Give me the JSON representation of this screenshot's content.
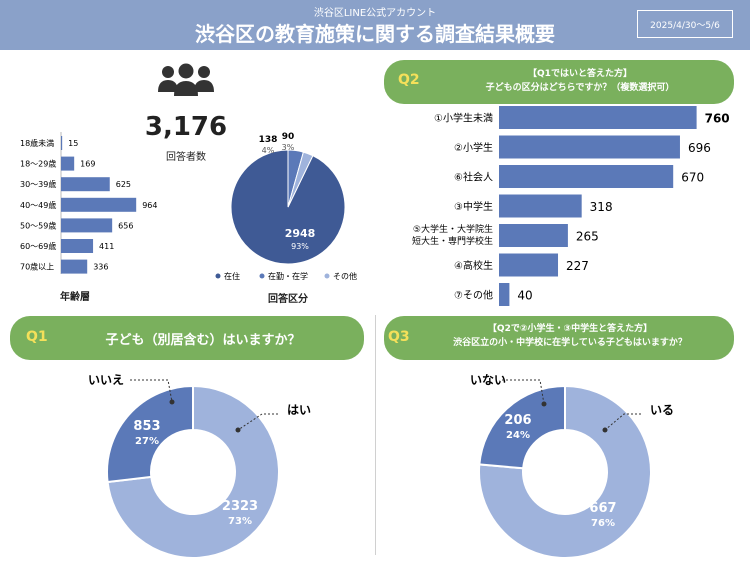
{
  "header": {
    "subtitle": "渋谷区LINE公式アカウント",
    "title": "渋谷区の教育施策に関する調査結果概要",
    "date_range": "2025/4/30～5/6"
  },
  "respondents": {
    "count": "3,176",
    "label": "回答者数"
  },
  "colors": {
    "dark": "#3f5a95",
    "mid": "#5b79b8",
    "light": "#9fb3dc",
    "green": "#7ab05d",
    "yellow": "#f4e05a"
  },
  "age_chart_label": "年齢層",
  "type_chart_label": "回答区分",
  "q1": {
    "label": "Q1",
    "text": "子ども（別居含む）はいますか？"
  },
  "q2": {
    "label": "Q2",
    "line1": "【Q1ではいと答えた方】",
    "line2": "子どもの区分はどちらですか？（複数選択可）"
  },
  "q3": {
    "label": "Q3",
    "line1": "【Q2で②小学生・③中学生と答えた方】",
    "line2": "渋谷区立の小・中学校に在学している子どもはいますか？"
  },
  "chart_data": [
    {
      "id": "age",
      "type": "bar",
      "orientation": "horizontal",
      "title": "年齢層",
      "categories": [
        "18歳未満",
        "18～29歳",
        "30～39歳",
        "40～49歳",
        "50～59歳",
        "60～69歳",
        "70歳以上"
      ],
      "values": [
        15,
        169,
        625,
        964,
        656,
        411,
        336
      ],
      "xlim": [
        0,
        1000
      ]
    },
    {
      "id": "type",
      "type": "pie",
      "title": "回答区分",
      "labels": [
        "在住",
        "在勤・在学",
        "その他"
      ],
      "values": [
        2948,
        138,
        90
      ],
      "value_labels": [
        "2948",
        "138",
        "90"
      ],
      "percents": [
        "93%",
        "4%",
        "3%"
      ],
      "colors": [
        "#3f5a95",
        "#5b79b8",
        "#9fb3dc"
      ]
    },
    {
      "id": "q2",
      "type": "bar",
      "orientation": "horizontal",
      "categories": [
        "①小学生未満",
        "②小学生",
        "⑥社会人",
        "③中学生",
        "⑤大学生・大学院生\n短大生・専門学校生",
        "④高校生",
        "⑦その他"
      ],
      "values": [
        760,
        696,
        670,
        318,
        265,
        227,
        40
      ],
      "xlim": [
        0,
        800
      ]
    },
    {
      "id": "q1",
      "type": "pie",
      "style": "donut",
      "labels": [
        "はい",
        "いいえ"
      ],
      "values": [
        2323,
        853
      ],
      "value_labels": [
        "2323",
        "853"
      ],
      "percents": [
        "73%",
        "27%"
      ],
      "colors": [
        "#9fb3dc",
        "#5b79b8"
      ]
    },
    {
      "id": "q3",
      "type": "pie",
      "style": "donut",
      "labels": [
        "いる",
        "いない"
      ],
      "values": [
        667,
        206
      ],
      "value_labels": [
        "667",
        "206"
      ],
      "percents": [
        "76%",
        "24%"
      ],
      "colors": [
        "#9fb3dc",
        "#5b79b8"
      ]
    }
  ]
}
